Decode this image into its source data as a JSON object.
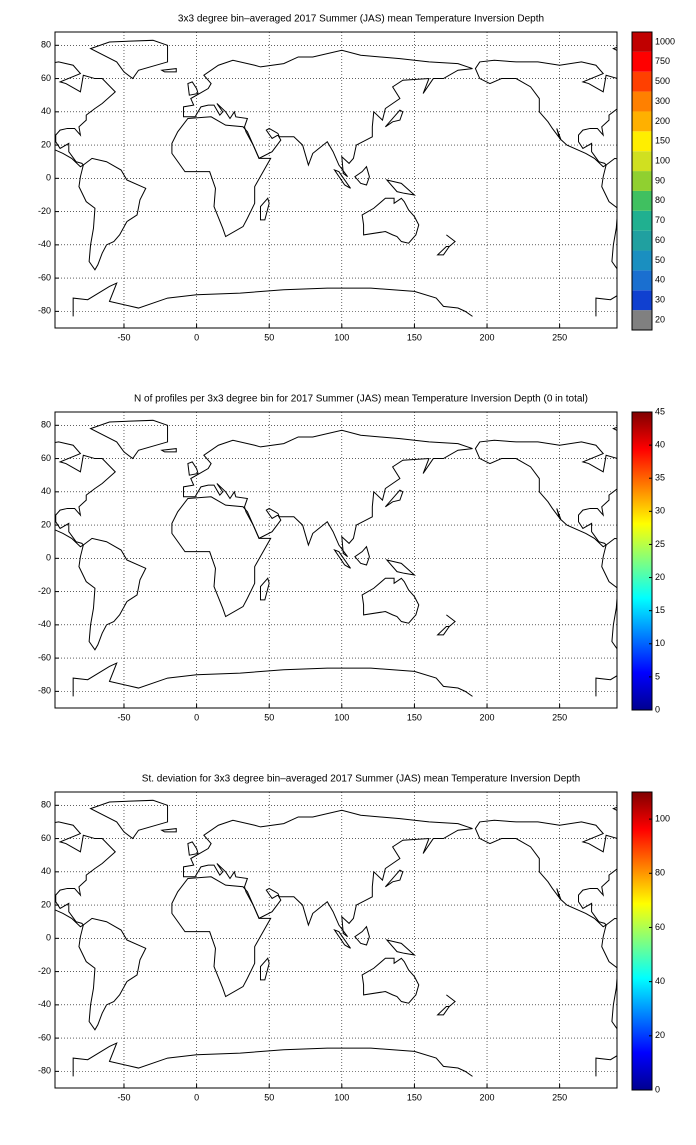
{
  "chart_data": [
    {
      "type": "map",
      "title": "3x3 degree bin–averaged 2017 Summer (JAS) mean Temperature Inversion Depth",
      "xlim": [
        -97.5,
        289.5
      ],
      "ylim": [
        -90,
        88
      ],
      "xticks": [
        -50,
        0,
        50,
        100,
        150,
        200,
        250
      ],
      "yticks": [
        -80,
        -60,
        -40,
        -20,
        0,
        20,
        40,
        60,
        80
      ],
      "grid": true,
      "colorbar": {
        "labels": [
          20,
          30,
          40,
          50,
          60,
          70,
          80,
          90,
          100,
          150,
          200,
          300,
          500,
          750,
          1000
        ],
        "colors": [
          "#808080",
          "#1040d0",
          "#1a6fd0",
          "#1a8fc0",
          "#20a0a0",
          "#20b090",
          "#40c060",
          "#90d030",
          "#d0e020",
          "#ffee00",
          "#ffb000",
          "#ff8000",
          "#ff4000",
          "#ff0000",
          "#c00000"
        ]
      }
    },
    {
      "type": "map",
      "title": "N of profiles per 3x3 degree bin for 2017 Summer (JAS) mean Temperature Inversion Depth  (0 in total)",
      "xlim": [
        -97.5,
        289.5
      ],
      "ylim": [
        -90,
        88
      ],
      "xticks": [
        -50,
        0,
        50,
        100,
        150,
        200,
        250
      ],
      "yticks": [
        -80,
        -60,
        -40,
        -20,
        0,
        20,
        40,
        60,
        80
      ],
      "grid": true,
      "colorbar": {
        "colormap": "jet",
        "clim": [
          0,
          45
        ],
        "ticks": [
          0,
          5,
          10,
          15,
          20,
          25,
          30,
          35,
          40,
          45
        ]
      }
    },
    {
      "type": "map",
      "title": "St. deviation for 3x3 degree bin–averaged 2017 Summer (JAS) mean Temperature Inversion Depth",
      "xlim": [
        -97.5,
        289.5
      ],
      "ylim": [
        -90,
        88
      ],
      "xticks": [
        -50,
        0,
        50,
        100,
        150,
        200,
        250
      ],
      "yticks": [
        -80,
        -60,
        -40,
        -20,
        0,
        20,
        40,
        60,
        80
      ],
      "grid": true,
      "colorbar": {
        "colormap": "jet",
        "clim": [
          0,
          110
        ],
        "ticks": [
          0,
          20,
          40,
          60,
          80,
          100
        ]
      }
    }
  ]
}
